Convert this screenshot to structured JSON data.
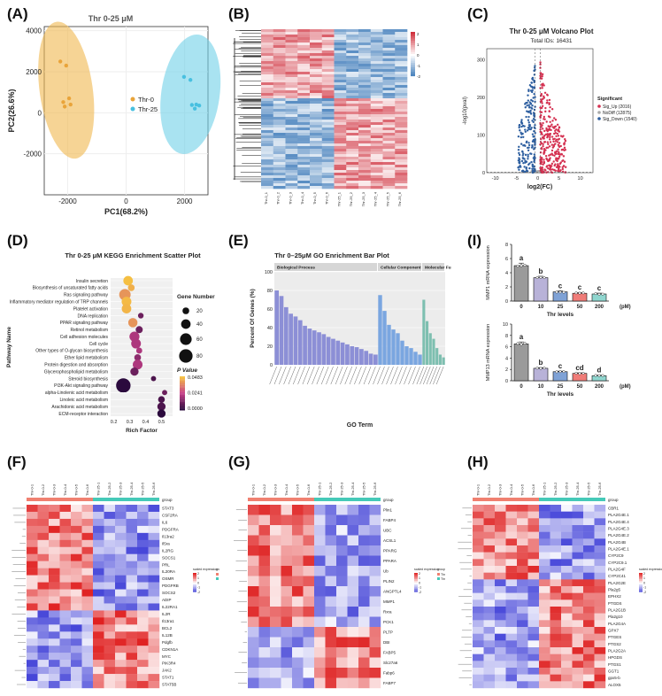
{
  "panel_labels": [
    "(A)",
    "(B)",
    "(C)",
    "(D)",
    "(E)",
    "(I)",
    "(F)",
    "(G)",
    "(H)"
  ],
  "colors": {
    "orange": "#f0b84e",
    "cyan": "#6fd1e8",
    "heat_red": "#e0262b",
    "heat_blue": "#3060b0",
    "heat_white": "#ffffff",
    "up_red": "#d43050",
    "down_blue": "#2e5fa0",
    "nodiff_gray": "#aaaaaa",
    "go_bp": "#8c8fd6",
    "go_cc": "#7aa6e0",
    "go_mf": "#7dbfb0"
  },
  "chart_data": [
    {
      "panel": "A",
      "type": "scatter",
      "title": "Thr 0-25 μM",
      "xlabel": "PC1(68.2%)",
      "ylabel": "PC2(26.6%)",
      "xlim": [
        -2800,
        2800
      ],
      "ylim": [
        -4000,
        4200
      ],
      "xticks": [
        "-2000",
        "0",
        "2000"
      ],
      "yticks": [
        "4000",
        "2000",
        "0",
        "-2000"
      ],
      "series": [
        {
          "name": "Thr-0",
          "x": [
            -2250,
            -2050,
            -2150,
            -1950,
            -2100,
            -1900
          ],
          "y": [
            2500,
            2300,
            520,
            700,
            300,
            400
          ]
        },
        {
          "name": "Thr-25",
          "x": [
            1980,
            2200,
            2250,
            2400,
            2500,
            2350
          ],
          "y": [
            1750,
            1600,
            380,
            400,
            350,
            200
          ]
        }
      ]
    },
    {
      "panel": "C",
      "type": "scatter",
      "title": "Thr 0-25 μM Volcano Plot",
      "subtitle": "Total IDs: 16431",
      "xlabel": "log2(FC)",
      "ylabel": "-log10(pval)",
      "xlim": [
        -12,
        13
      ],
      "ylim": [
        0,
        330
      ],
      "xticks": [
        "-10",
        "-5",
        "0",
        "5",
        "10"
      ],
      "yticks": [
        "0",
        "100",
        "200",
        "300"
      ],
      "legend_title": "Significant",
      "legend": [
        "Sig_Up (2016)",
        "NoDiff (12875)",
        "Sig_Down (1540)"
      ]
    },
    {
      "panel": "D",
      "type": "scatter",
      "title": "Thr 0-25 μM KEGG Enrichment Scatter Plot",
      "xlabel": "Rich Factor",
      "ylabel": "Pathway Name",
      "xlim": [
        0.18,
        0.57
      ],
      "xticks": [
        "0.2",
        "0.3",
        "0.4",
        "0.5"
      ],
      "size_legend_title": "Gene Number",
      "size_legend": [
        "20",
        "40",
        "60",
        "80"
      ],
      "color_legend_title": "P Value",
      "color_legend": [
        "0.0483",
        "0.0241",
        "0.0000"
      ],
      "categories": [
        "Insulin secretion",
        "Biosynthesis of unsaturated fatty acids",
        "Ras signaling pathway",
        "Inflammatory mediator regulation of TRP channels",
        "Platelet activation",
        "DNA replication",
        "PPAR signaling pathway",
        "Retinol metabolism",
        "Cell adhesion molecules",
        "Cell cycle",
        "Other types of O-glycan biosynthesis",
        "Ether lipid metabolism",
        "Protein digestion and absorption",
        "Glycerophospholipid metabolism",
        "Steroid biosynthesis",
        "PI3K-Akt signaling pathway",
        "alpha-Linolenic acid metabolism",
        "Linoleic acid metabolism",
        "Arachidonic acid metabolism",
        "ECM-receptor interaction"
      ],
      "rich_factor": [
        0.29,
        0.31,
        0.27,
        0.28,
        0.28,
        0.37,
        0.32,
        0.36,
        0.33,
        0.34,
        0.36,
        0.35,
        0.35,
        0.33,
        0.45,
        0.26,
        0.52,
        0.5,
        0.5,
        0.5
      ],
      "gene_number": [
        40,
        20,
        58,
        42,
        40,
        14,
        38,
        22,
        44,
        42,
        16,
        20,
        42,
        30,
        12,
        92,
        12,
        20,
        30,
        30
      ],
      "p_value": [
        0.048,
        0.045,
        0.04,
        0.047,
        0.046,
        0.01,
        0.04,
        0.01,
        0.02,
        0.02,
        0.02,
        0.015,
        0.02,
        0.01,
        0.005,
        0.0,
        0.01,
        0.005,
        0.005,
        0.0
      ]
    },
    {
      "panel": "E",
      "type": "bar",
      "title": "Thr 0–25μM GO Enrichment Bar Plot",
      "xlabel": "GO Term",
      "ylabel": "Percent Of Genes (%)",
      "ylim": [
        0,
        100
      ],
      "yticks": [
        "0",
        "20",
        "40",
        "60",
        "80",
        "100"
      ],
      "facets": [
        "Biological Process",
        "Cellular Component",
        "Molecular Function"
      ],
      "series": [
        {
          "name": "Biological Process",
          "values": [
            80,
            74,
            62,
            55,
            52,
            48,
            42,
            39,
            37,
            35,
            33,
            30,
            28,
            26,
            24,
            22,
            20,
            19,
            17,
            15,
            12,
            11
          ]
        },
        {
          "name": "Cellular Component",
          "values": [
            75,
            58,
            43,
            38,
            34,
            26,
            20,
            18,
            14,
            11
          ]
        },
        {
          "name": "Molecular Function",
          "values": [
            70,
            47,
            34,
            28,
            18,
            11,
            8
          ]
        }
      ]
    },
    {
      "panel": "I-top",
      "type": "bar",
      "xlabel": "Thr levels",
      "unit": "(pM)",
      "ylabel": "MMP1 mRNA expression",
      "ylim": [
        0,
        8
      ],
      "yticks": [
        "0",
        "2",
        "4",
        "6",
        "8"
      ],
      "categories": [
        "0",
        "10",
        "25",
        "50",
        "200"
      ],
      "values": [
        5.0,
        3.3,
        1.3,
        1.1,
        1.0
      ],
      "errors": [
        0.35,
        0.2,
        0.15,
        0.12,
        0.12
      ],
      "letters": [
        "a",
        "b",
        "c",
        "c",
        "c"
      ],
      "bar_colors": [
        "#9a9a9a",
        "#b8b2d8",
        "#7fa2d6",
        "#f07c78",
        "#8fd6cf"
      ]
    },
    {
      "panel": "I-bottom",
      "type": "bar",
      "xlabel": "Thr levels",
      "unit": "(pM)",
      "ylabel": "MMP13 mRNA expression",
      "ylim": [
        0,
        10
      ],
      "yticks": [
        "0",
        "2",
        "4",
        "6",
        "8",
        "10"
      ],
      "categories": [
        "0",
        "10",
        "25",
        "50",
        "200"
      ],
      "values": [
        6.5,
        2.2,
        1.6,
        1.3,
        0.9
      ],
      "errors": [
        0.35,
        0.12,
        0.1,
        0.1,
        0.08
      ],
      "letters": [
        "a",
        "b",
        "c",
        "cd",
        "d"
      ],
      "bar_colors": [
        "#9a9a9a",
        "#b8b2d8",
        "#7fa2d6",
        "#f07c78",
        "#8fd6cf"
      ]
    },
    {
      "panel": "B",
      "type": "heatmap",
      "columns": [
        "Thr-0_1",
        "Thr-0_2",
        "Thr-0_3",
        "Thr-0_4",
        "Thr-0_5",
        "Thr-0_6",
        "Thr-25_1",
        "Thr-25_2",
        "Thr-25_3",
        "Thr-25_4",
        "Thr-25_5",
        "Thr-25_6"
      ],
      "scale": [
        "2",
        "1",
        "0",
        "-1",
        "-2"
      ]
    },
    {
      "panel": "F",
      "type": "heatmap",
      "columns": [
        "Thr-0-1",
        "Thr-0-2",
        "Thr-0-3",
        "Thr-0-4",
        "Thr-0-5",
        "Thr-0-6",
        "Thr-25-1",
        "Thr-25-2",
        "Thr-25-3",
        "Thr-25-4",
        "Thr-25-5",
        "Thr-25-6"
      ],
      "rows": [
        "STAT3",
        "CSF2RA",
        "IL6",
        "PDGFRA",
        "Il13ra2",
        "Il5ra",
        "IL2RG",
        "SOCS1",
        "PRL",
        "IL20RA",
        "OSMR",
        "PDGFRB",
        "SOCS2",
        "ADIP",
        "IL22RA1",
        "IL2R",
        "Il13ra1",
        "BCL2",
        "IL12B",
        "Pdgfb",
        "CDKN1A",
        "MYC",
        "PIK3R4",
        "JAK2",
        "STAT1",
        "STAT5B"
      ],
      "legend_title": "scaled expression",
      "group_title": "group",
      "legend_ticks": [
        "2",
        "1",
        "0",
        "-1",
        "-2"
      ],
      "groups": [
        "Thr-0",
        "Thr-25"
      ]
    },
    {
      "panel": "G",
      "type": "heatmap",
      "columns": [
        "Thr-0-1",
        "Thr-0-2",
        "Thr-0-3",
        "Thr-0-4",
        "Thr-0-5",
        "Thr-0-6",
        "Thr-25-1",
        "Thr-25-2",
        "Thr-25-3",
        "Thr-25-4",
        "Thr-25-5",
        "Thr-25-6"
      ],
      "rows": [
        "Plin1",
        "FABP4",
        "UBC",
        "ACSL1",
        "PPARG",
        "PPARA",
        "Ub",
        "PLIN2",
        "ANGPTL4",
        "MMP1",
        "Rxra",
        "PCK1",
        "PLTP",
        "DBI",
        "FABP5",
        "Slc27a6",
        "Fabp6",
        "FABP7"
      ],
      "legend_title": "scaled expression",
      "group_title": "group",
      "legend_ticks": [
        "2",
        "1",
        "0",
        "-1",
        "-2"
      ],
      "groups": [
        "Thr-0",
        "Thr-25"
      ]
    },
    {
      "panel": "H",
      "type": "heatmap",
      "columns": [
        "Thr-0-1",
        "Thr-0-2",
        "Thr-0-3",
        "Thr-0-4",
        "Thr-0-5",
        "Thr-0-6",
        "Thr-25-1",
        "Thr-25-2",
        "Thr-25-3",
        "Thr-25-4",
        "Thr-25-5",
        "Thr-25-6"
      ],
      "rows": [
        "CBR1",
        "PLA2G4E.1",
        "PLA2G4E.4",
        "PLA2G4E.3",
        "PLA2G4E.2",
        "PLA2G4B",
        "PLA2G4E.1",
        "CYP2C9",
        "CYP2C9.1",
        "PLA2G4F",
        "CYP2C41",
        "PLA2G2E",
        "Pla2g5",
        "EPHX2",
        "PTGDS",
        "PLA2G1B",
        "Pla2g10",
        "PLA2G4A",
        "GPX7",
        "PTGES",
        "PTGS2",
        "PLA2G2A",
        "HPGDS",
        "PTGS1",
        "GGT1",
        "gpx5-b",
        "ALOX5"
      ],
      "legend_title": "scaled expression",
      "group_title": "group",
      "legend_ticks": [
        "2",
        "1",
        "0",
        "-1",
        "-2"
      ],
      "groups": [
        "Thr-0",
        "Thr-25"
      ]
    }
  ]
}
